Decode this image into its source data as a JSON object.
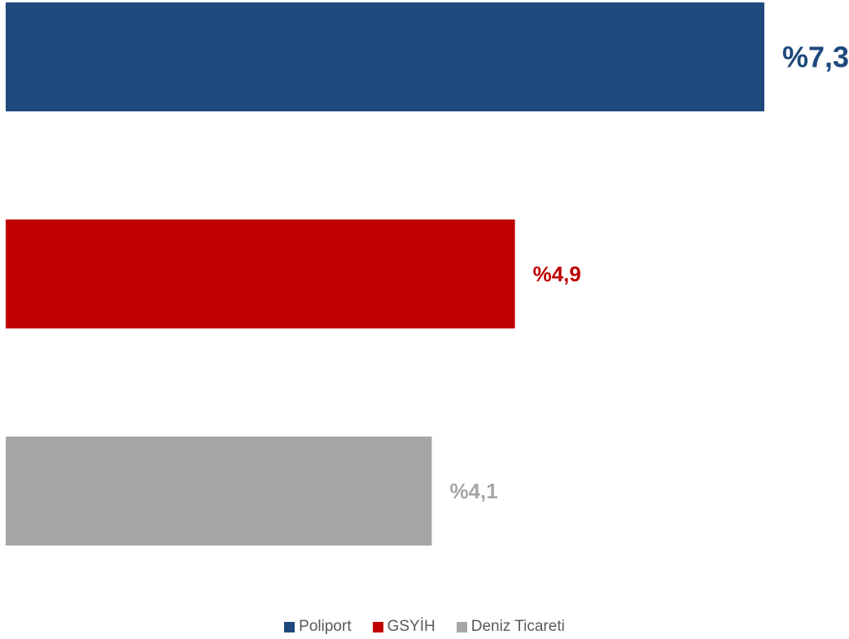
{
  "chart_data": {
    "type": "bar",
    "orientation": "horizontal",
    "series": [
      {
        "name": "Poliport",
        "value": 7.3,
        "label": "%7,3",
        "color": "#1F497D"
      },
      {
        "name": "GSYİH",
        "value": 4.9,
        "label": "%4,9",
        "color": "#C00000"
      },
      {
        "name": "Deniz Ticareti",
        "value": 4.1,
        "label": "%4,1",
        "color": "#A6A6A6"
      }
    ],
    "xlim": [
      0,
      7.3
    ],
    "grid": false,
    "legend_position": "bottom"
  }
}
